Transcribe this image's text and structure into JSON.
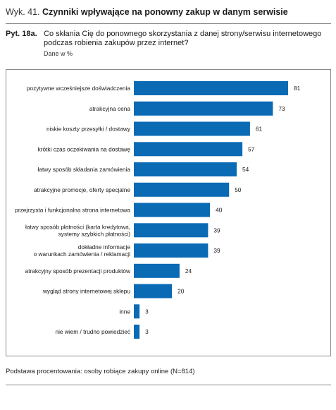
{
  "header": {
    "prefix": "Wyk. 41.",
    "title": "Czynniki wpływające na ponowny zakup w danym serwisie"
  },
  "question": {
    "id": "Pyt. 18a.",
    "text": "Co skłania Cię do ponownego skorzystania z danej strony/serwisu internetowego podczas robienia zakupów przez internet?",
    "subtitle": "Dane w %"
  },
  "footer": {
    "base": "Podstawa procentowania: osoby robiące zakupy online (N=814)"
  },
  "colors": {
    "bar": "#0a6ab4"
  },
  "chart_data": {
    "type": "bar",
    "orientation": "horizontal",
    "categories": [
      "pozytywne wcześniejsze doświadczenia",
      "atrakcyjna cena",
      "niskie koszty przesyłki / dostawy",
      "krótki czas oczekiwania na dostawę",
      "łatwy sposób składania zamówienia",
      "atrakcyjne promocje, oferty specjalne",
      "przejrzysta i funkcjonalna strona internetowa",
      "łatwy sposób płatności (karta kredytowa,\nsystemy szybkich płatności)",
      "dokładne informacje\no warunkach zamówienia / reklamacji",
      "atrakcyjny sposób prezentacji produktów",
      "wygląd strony internetowej sklepu",
      "inne",
      "nie wiem / trudno powiedzieć"
    ],
    "values": [
      81,
      73,
      61,
      57,
      54,
      50,
      40,
      39,
      39,
      24,
      20,
      3,
      3
    ],
    "data_labels": [
      "81",
      "73",
      "61",
      "57",
      "54",
      "50",
      "40",
      "39",
      "39",
      "24",
      "20",
      "3",
      "3"
    ],
    "xlim": [
      0,
      100
    ],
    "grid": false,
    "legend": false
  }
}
